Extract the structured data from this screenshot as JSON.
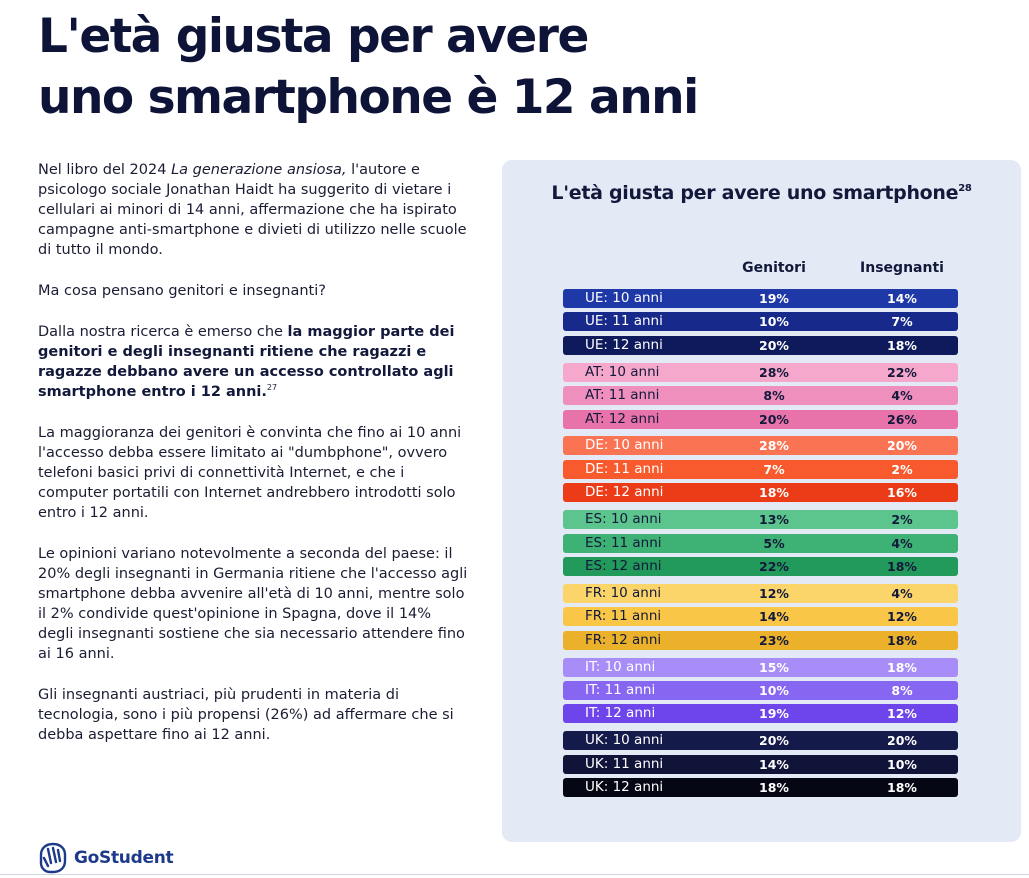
{
  "title": {
    "line1": "L'età giusta per avere",
    "line2": "uno smartphone è 12 anni"
  },
  "body": {
    "p1_a": "Nel libro del 2024 ",
    "p1_italic": "La generazione ansiosa,",
    "p1_b": " l'autore e psicologo sociale Jonathan Haidt ha suggerito di vietare i cellulari ai minori di 14 anni, affermazione che ha ispirato campagne anti-smartphone e divieti di utilizzo nelle scuole di tutto il mondo.",
    "p2": "Ma cosa pensano genitori e insegnanti?",
    "p3_a": "Dalla nostra ricerca è emerso che ",
    "p3_bold": "la maggior parte dei genitori e degli insegnanti ritiene che ragazzi e ragazze debbano avere un accesso controllato agli smartphone entro i 12 anni.",
    "p3_sup": "27",
    "p4": "La maggioranza dei genitori è convinta che fino ai 10 anni l'accesso debba essere limitato ai \"dumbphone\", ovvero telefoni basici privi di connettività Internet, e che i computer portatili con Internet andrebbero introdotti solo entro i 12 anni.",
    "p5": "Le opinioni variano notevolmente a seconda del paese: il 20% degli insegnanti in Germania ritiene che l'accesso agli smartphone debba avvenire all'età di 10 anni, mentre solo il 2% condivide quest'opinione in Spagna, dove il 14% degli insegnanti sostiene che sia necessario attendere fino ai 16 anni.",
    "p6": "Gli insegnanti austriaci, più prudenti in materia di tecnologia, sono i più propensi (26%) ad affermare che si debba aspettare fino ai 12 anni."
  },
  "chart_data": {
    "type": "table",
    "title": "L'età giusta per avere uno smartphone",
    "title_sup": "28",
    "columns": [
      "Genitori",
      "Insegnanti"
    ],
    "groups": [
      {
        "rows": [
          {
            "label": "UE: 10 anni",
            "genitori": "19%",
            "insegnanti": "14%",
            "bg": "#1e38a8",
            "fg": "#ffffff"
          },
          {
            "label": "UE: 11 anni",
            "genitori": "10%",
            "insegnanti": "7%",
            "bg": "#17298a",
            "fg": "#ffffff"
          },
          {
            "label": "UE: 12 anni",
            "genitori": "20%",
            "insegnanti": "18%",
            "bg": "#0e1a5c",
            "fg": "#ffffff"
          }
        ]
      },
      {
        "rows": [
          {
            "label": "AT: 10 anni",
            "genitori": "28%",
            "insegnanti": "22%",
            "bg": "#f5a8cc",
            "fg": "#12193a"
          },
          {
            "label": "AT: 11 anni",
            "genitori": "8%",
            "insegnanti": "4%",
            "bg": "#ef8fbe",
            "fg": "#12193a"
          },
          {
            "label": "AT: 12 anni",
            "genitori": "20%",
            "insegnanti": "26%",
            "bg": "#e873aa",
            "fg": "#12193a"
          }
        ]
      },
      {
        "rows": [
          {
            "label": "DE: 10 anni",
            "genitori": "28%",
            "insegnanti": "20%",
            "bg": "#fa7454",
            "fg": "#ffffff"
          },
          {
            "label": "DE: 11 anni",
            "genitori": "7%",
            "insegnanti": "2%",
            "bg": "#f85a2e",
            "fg": "#ffffff"
          },
          {
            "label": "DE: 12 anni",
            "genitori": "18%",
            "insegnanti": "16%",
            "bg": "#eb3c17",
            "fg": "#ffffff"
          }
        ]
      },
      {
        "rows": [
          {
            "label": "ES: 10 anni",
            "genitori": "13%",
            "insegnanti": "2%",
            "bg": "#5cc48d",
            "fg": "#12193a"
          },
          {
            "label": "ES: 11 anni",
            "genitori": "5%",
            "insegnanti": "4%",
            "bg": "#3db274",
            "fg": "#12193a"
          },
          {
            "label": "ES: 12 anni",
            "genitori": "22%",
            "insegnanti": "18%",
            "bg": "#229a5c",
            "fg": "#12193a"
          }
        ]
      },
      {
        "rows": [
          {
            "label": "FR: 10 anni",
            "genitori": "12%",
            "insegnanti": "4%",
            "bg": "#fcd56a",
            "fg": "#12193a"
          },
          {
            "label": "FR: 11 anni",
            "genitori": "14%",
            "insegnanti": "12%",
            "bg": "#f9c648",
            "fg": "#12193a"
          },
          {
            "label": "FR: 12 anni",
            "genitori": "23%",
            "insegnanti": "18%",
            "bg": "#ebb12a",
            "fg": "#12193a"
          }
        ]
      },
      {
        "rows": [
          {
            "label": "IT: 10 anni",
            "genitori": "15%",
            "insegnanti": "18%",
            "bg": "#a88cf7",
            "fg": "#ffffff"
          },
          {
            "label": "IT: 11 anni",
            "genitori": "10%",
            "insegnanti": "8%",
            "bg": "#8766f2",
            "fg": "#ffffff"
          },
          {
            "label": "IT: 12 anni",
            "genitori": "19%",
            "insegnanti": "12%",
            "bg": "#6d45ea",
            "fg": "#ffffff"
          }
        ]
      },
      {
        "rows": [
          {
            "label": "UK: 10 anni",
            "genitori": "20%",
            "insegnanti": "20%",
            "bg": "#141a4a",
            "fg": "#ffffff"
          },
          {
            "label": "UK: 11 anni",
            "genitori": "14%",
            "insegnanti": "10%",
            "bg": "#0f1438",
            "fg": "#ffffff"
          },
          {
            "label": "UK: 12 anni",
            "genitori": "18%",
            "insegnanti": "18%",
            "bg": "#050714",
            "fg": "#ffffff"
          }
        ]
      }
    ]
  },
  "logo": {
    "text": "GoStudent",
    "icon": "gostudent-hand-icon",
    "color": "#1d3a8a"
  }
}
